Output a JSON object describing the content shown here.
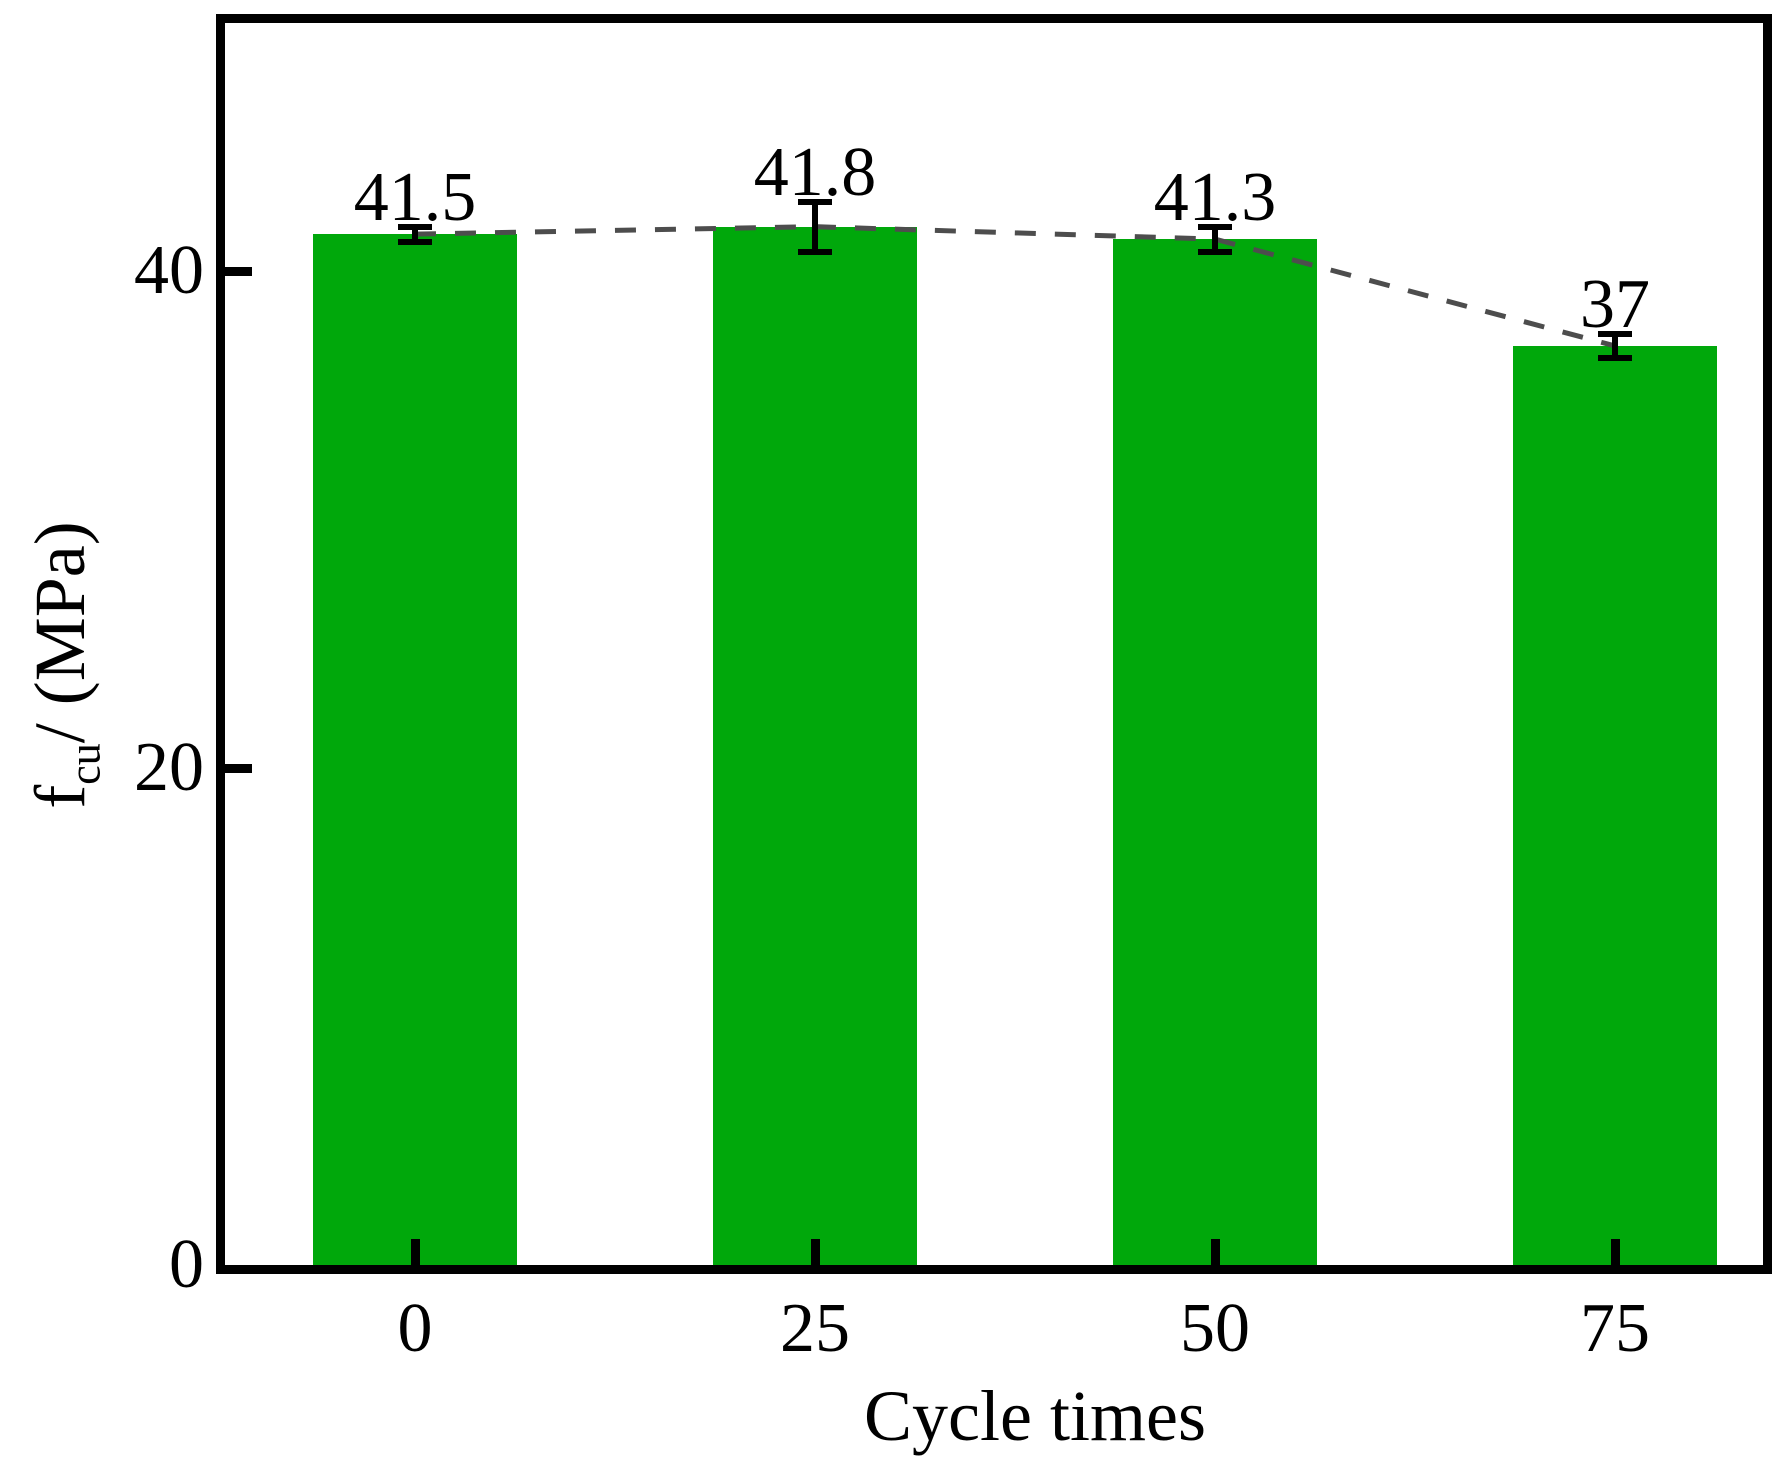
{
  "chart_data": {
    "type": "bar",
    "title": "",
    "categories": [
      "0",
      "25",
      "50",
      "75"
    ],
    "values": [
      41.5,
      41.8,
      41.3,
      37
    ],
    "bar_labels": [
      "41.5",
      "41.8",
      "41.3",
      "37"
    ],
    "errors": [
      0.3,
      1.0,
      0.5,
      0.5
    ],
    "xlabel": "Cycle times",
    "ylabel": {
      "main": "f",
      "sub": "cu",
      "rest": "/ (MPa)"
    },
    "ylabel_plain": "f_cu/ (MPa)",
    "y_ticks": [
      0,
      20,
      40
    ],
    "ylim": [
      0,
      50
    ],
    "grid": false,
    "legend": "none",
    "trendline": {
      "style": "dashed",
      "connects": "bar-tops"
    },
    "colors": {
      "bar": "#00a80b",
      "trend_dash": "#4d4d4d",
      "error_bar": "#000000",
      "axis": "#000000",
      "text": "#000000",
      "background": "#ffffff"
    }
  }
}
